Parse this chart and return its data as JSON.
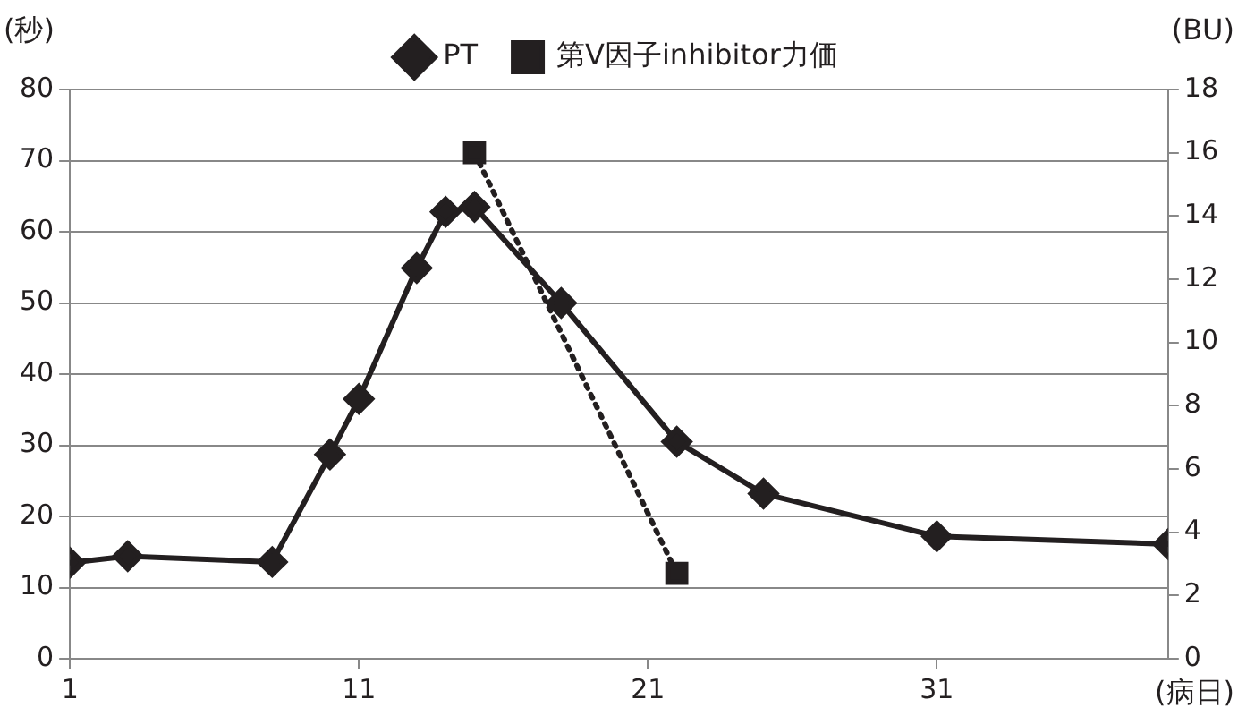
{
  "chart_data": {
    "type": "line",
    "xlabel": "(病日)",
    "ylabel": "(秒)",
    "y2label": "(BU)",
    "xlim": [
      1,
      39
    ],
    "xticks": [
      1,
      11,
      21,
      31
    ],
    "ylim": [
      0,
      80
    ],
    "yticks": [
      0,
      10,
      20,
      30,
      40,
      50,
      60,
      70,
      80
    ],
    "y2lim": [
      0,
      18
    ],
    "y2ticks": [
      0,
      2,
      4,
      6,
      8,
      10,
      12,
      14,
      16,
      18
    ],
    "grid": "y",
    "legend": "top",
    "series": [
      {
        "name": "PT",
        "color": "#231f20",
        "marker": "diamond",
        "line_style": "solid",
        "x": [
          1,
          3,
          8,
          10,
          11,
          13,
          14,
          15,
          18,
          22,
          25,
          31,
          39
        ],
        "values": [
          13.5,
          14.4,
          13.6,
          28.7,
          36.5,
          54.9,
          62.8,
          63.5,
          50,
          30.5,
          23.2,
          17.2,
          16.1
        ]
      },
      {
        "name": "第V因子inhibitor力価",
        "color": "#231f20",
        "marker": "square",
        "line_style": "dotted",
        "axis": "y2",
        "x": [
          15,
          22
        ],
        "values": [
          16.0,
          2.7
        ]
      }
    ]
  }
}
